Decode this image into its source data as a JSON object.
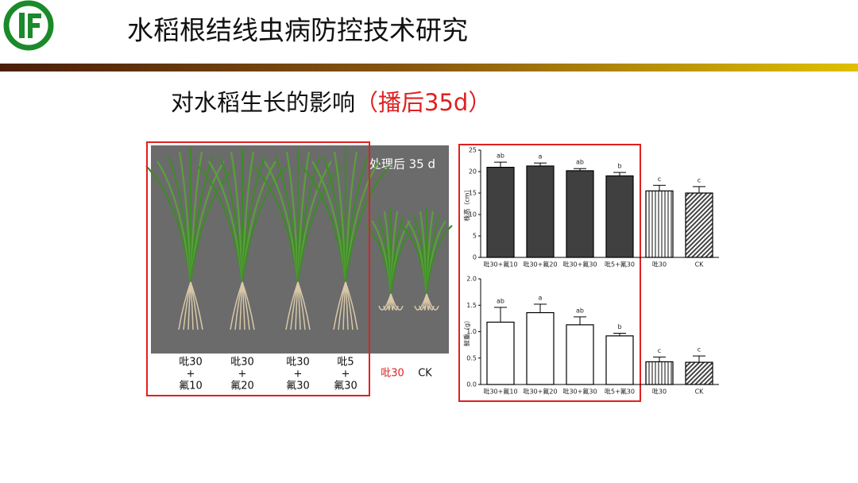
{
  "header": {
    "title": "水稻根结线虫病防控技术研究"
  },
  "subtitle": {
    "text": "对水稻生长的影响",
    "highlight": "（播后35d）"
  },
  "photo": {
    "caption": "处理后 35 d",
    "labels": [
      [
        "吡30",
        "+",
        "氟10"
      ],
      [
        "吡30",
        "+",
        "氟20"
      ],
      [
        "吡30",
        "+",
        "氟30"
      ],
      [
        "吡5",
        "+",
        "氟30"
      ]
    ],
    "extra_labels": [
      "吡30",
      "CK"
    ]
  },
  "chart_data": [
    {
      "type": "bar",
      "ylabel": "株高（cm）",
      "categories": [
        "吡30+氟10",
        "吡30+氟20",
        "吡30+氟30",
        "吡5+氟30",
        "吡30",
        "CK"
      ],
      "values": [
        21,
        21.3,
        20.2,
        19,
        15.5,
        15
      ],
      "errors": [
        1.2,
        0.7,
        0.5,
        0.8,
        1.3,
        1.5
      ],
      "letters": [
        "ab",
        "a",
        "ab",
        "b",
        "c",
        "c"
      ],
      "color": "#404040",
      "bar_styles": [
        "solid",
        "solid",
        "solid",
        "solid",
        "vertical-stripes",
        "diagonal-stripes"
      ],
      "ylim": [
        0,
        25
      ],
      "yticks": [
        0,
        5,
        10,
        15,
        20,
        25
      ]
    },
    {
      "type": "bar",
      "ylabel": "鲜重（g）",
      "categories": [
        "吡30+氟10",
        "吡30+氟20",
        "吡30+氟30",
        "吡5+氟30",
        "吡30",
        "CK"
      ],
      "values": [
        1.18,
        1.36,
        1.13,
        0.92,
        0.43,
        0.42
      ],
      "errors": [
        0.28,
        0.16,
        0.15,
        0.05,
        0.09,
        0.12
      ],
      "letters": [
        "ab",
        "a",
        "ab",
        "b",
        "c",
        "c"
      ],
      "color": "#ffffff",
      "bar_styles": [
        "solid",
        "solid",
        "solid",
        "solid",
        "vertical-stripes",
        "diagonal-stripes"
      ],
      "ylim": [
        0,
        2.0
      ],
      "yticks": [
        {
          "value": 0,
          "label": "0.0"
        },
        0.5,
        {
          "value": 1,
          "label": "1.0"
        },
        1.5,
        {
          "value": 2,
          "label": "2.0"
        }
      ]
    }
  ]
}
